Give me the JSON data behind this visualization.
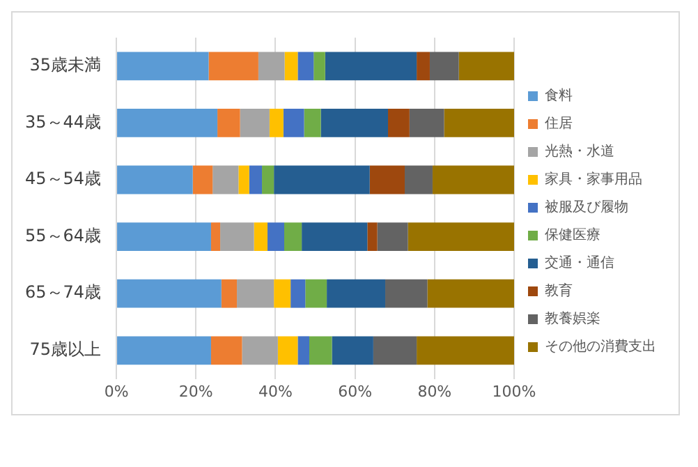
{
  "chart_data": {
    "type": "bar",
    "orientation": "horizontal",
    "stacked": true,
    "categories": [
      "35歳未満",
      "35～44歳",
      "45～54歳",
      "55～64歳",
      "65～74歳",
      "75歳以上"
    ],
    "series": [
      {
        "name": "食料",
        "color": "#5b9bd5",
        "values": [
          23.2,
          25.4,
          19.2,
          23.8,
          26.4,
          23.8
        ]
      },
      {
        "name": "住居",
        "color": "#ed7d31",
        "values": [
          12.5,
          5.7,
          5.0,
          2.3,
          3.9,
          7.8
        ]
      },
      {
        "name": "光熱・水道",
        "color": "#a5a5a5",
        "values": [
          6.6,
          7.4,
          6.5,
          8.5,
          9.3,
          9.0
        ]
      },
      {
        "name": "家具・家事用品",
        "color": "#ffc000",
        "values": [
          3.3,
          3.5,
          2.7,
          3.4,
          4.2,
          5.0
        ]
      },
      {
        "name": "被服及び履物",
        "color": "#4472c4",
        "values": [
          4.0,
          5.2,
          3.2,
          4.2,
          3.7,
          2.9
        ]
      },
      {
        "name": "保健医療",
        "color": "#70ad47",
        "values": [
          2.9,
          4.2,
          3.0,
          4.4,
          5.4,
          5.7
        ]
      },
      {
        "name": "交通・通信",
        "color": "#255e91",
        "values": [
          23.0,
          16.9,
          24.1,
          16.5,
          14.7,
          10.4
        ]
      },
      {
        "name": "教育",
        "color": "#9e480e",
        "values": [
          3.3,
          5.4,
          8.8,
          2.5,
          0,
          0
        ]
      },
      {
        "name": "教養娯楽",
        "color": "#636363",
        "values": [
          7.3,
          8.7,
          7.0,
          7.7,
          10.6,
          10.9
        ]
      },
      {
        "name": "その他の消費支出",
        "color": "#997300",
        "values": [
          13.9,
          17.6,
          20.5,
          26.7,
          21.8,
          24.5
        ]
      }
    ],
    "xlim": [
      0,
      100
    ],
    "xticks": [
      {
        "value": 0,
        "label": "0%"
      },
      {
        "value": 20,
        "label": "20%"
      },
      {
        "value": 40,
        "label": "40%"
      },
      {
        "value": 60,
        "label": "60%"
      },
      {
        "value": 80,
        "label": "80%"
      },
      {
        "value": 100,
        "label": "100%"
      }
    ],
    "grid": "x",
    "legend": "right"
  }
}
